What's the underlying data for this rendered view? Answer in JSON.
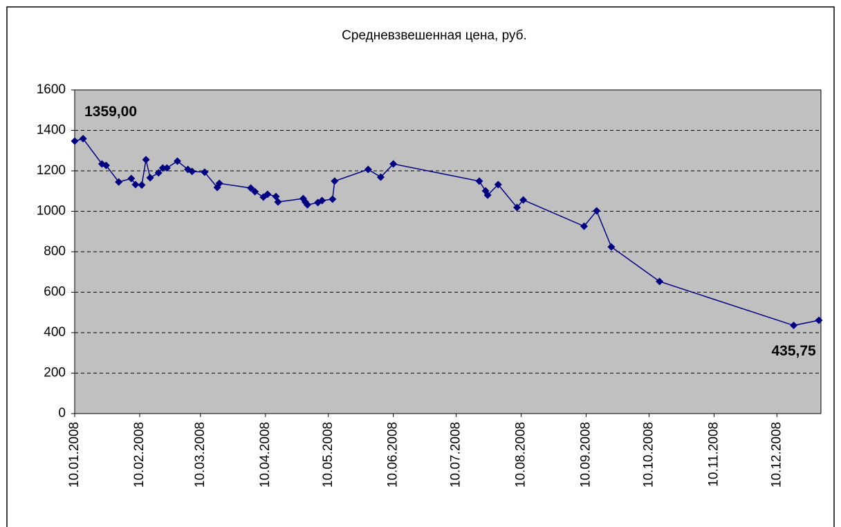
{
  "chart_data": {
    "type": "line",
    "title": "Средневзвешенная цена, руб.",
    "x": [
      "10.01.2008",
      "14.01.2008",
      "23.01.2008",
      "25.01.2008",
      "31.01.2008",
      "06.02.2008",
      "08.02.2008",
      "11.02.2008",
      "13.02.2008",
      "15.02.2008",
      "19.02.2008",
      "21.02.2008",
      "23.02.2008",
      "28.02.2008",
      "04.03.2008",
      "06.03.2008",
      "12.03.2008",
      "18.03.2008",
      "19.03.2008",
      "03.04.2008",
      "05.04.2008",
      "09.04.2008",
      "11.04.2008",
      "15.04.2008",
      "16.04.2008",
      "28.04.2008",
      "29.04.2008",
      "30.04.2008",
      "05.05.2008",
      "07.05.2008",
      "12.05.2008",
      "13.05.2008",
      "29.05.2008",
      "04.06.2008",
      "10.06.2008",
      "21.07.2008",
      "24.07.2008",
      "25.07.2008",
      "30.07.2008",
      "08.08.2008",
      "11.08.2008",
      "09.09.2008",
      "15.09.2008",
      "22.09.2008",
      "15.10.2008",
      "18.12.2008",
      "30.12.2008"
    ],
    "series": [
      {
        "name": "Средневзвешенная цена",
        "color": "#000080",
        "values": [
          1347,
          1359,
          1234,
          1227,
          1145,
          1162,
          1132,
          1130,
          1255,
          1166,
          1190,
          1214,
          1214,
          1248,
          1207,
          1197,
          1193,
          1118,
          1138,
          1115,
          1097,
          1070,
          1084,
          1073,
          1046,
          1063,
          1046,
          1032,
          1043,
          1053,
          1060,
          1149,
          1207,
          1169,
          1234,
          1149,
          1101,
          1080,
          1132,
          1019,
          1056,
          926,
          1002,
          824,
          653,
          435.75,
          461
        ],
        "value_labels": [
          null,
          "1359,00",
          null,
          null,
          null,
          null,
          null,
          null,
          null,
          null,
          null,
          null,
          null,
          null,
          null,
          null,
          null,
          null,
          null,
          null,
          null,
          null,
          null,
          null,
          null,
          null,
          null,
          null,
          null,
          null,
          null,
          null,
          null,
          null,
          null,
          null,
          null,
          null,
          null,
          null,
          null,
          null,
          null,
          null,
          null,
          "435,75",
          null
        ]
      }
    ],
    "xlim": [
      "10.01.2008",
      "31.12.2008"
    ],
    "xticks": [
      "10.01.2008",
      "10.02.2008",
      "10.03.2008",
      "10.04.2008",
      "10.05.2008",
      "10.06.2008",
      "10.07.2008",
      "10.08.2008",
      "10.09.2008",
      "10.10.2008",
      "10.11.2008",
      "10.12.2008"
    ],
    "ylim": [
      0,
      1600
    ],
    "yticks": [
      0,
      200,
      400,
      600,
      800,
      1000,
      1200,
      1400,
      1600
    ],
    "grid": true
  }
}
